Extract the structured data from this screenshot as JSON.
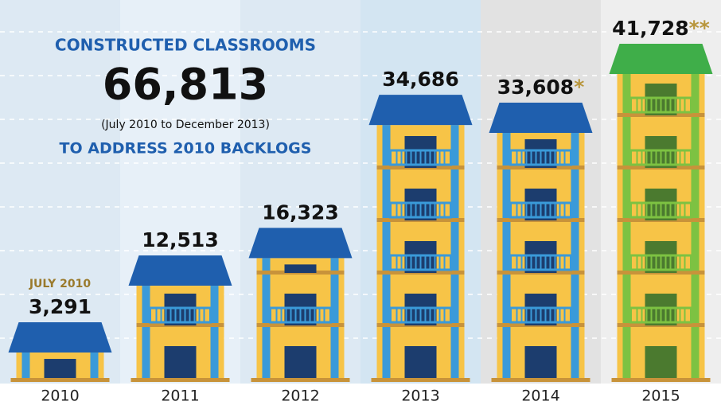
{
  "chart_data": {
    "type": "bar",
    "heading": "CONSTRUCTED CLASSROOMS",
    "total": "66,813",
    "period": "(July 2010 to December 2013)",
    "subheading": "TO ADDRESS 2010 BACKLOGS",
    "first_label_note": "JULY 2010",
    "categories": [
      "2010",
      "2011",
      "2012",
      "2013",
      "2014",
      "2015"
    ],
    "values": [
      3291,
      12513,
      16323,
      34686,
      33608,
      41728
    ],
    "value_labels": [
      "3,291",
      "12,513",
      "16,323",
      "34,686",
      "33,608",
      "41,728"
    ],
    "value_notes": [
      null,
      null,
      null,
      null,
      "*",
      "**"
    ],
    "colors": [
      "#1f5fae",
      "#1f5fae",
      "#1f5fae",
      "#1f5fae",
      "#1f5fae",
      "#3fae49"
    ]
  }
}
